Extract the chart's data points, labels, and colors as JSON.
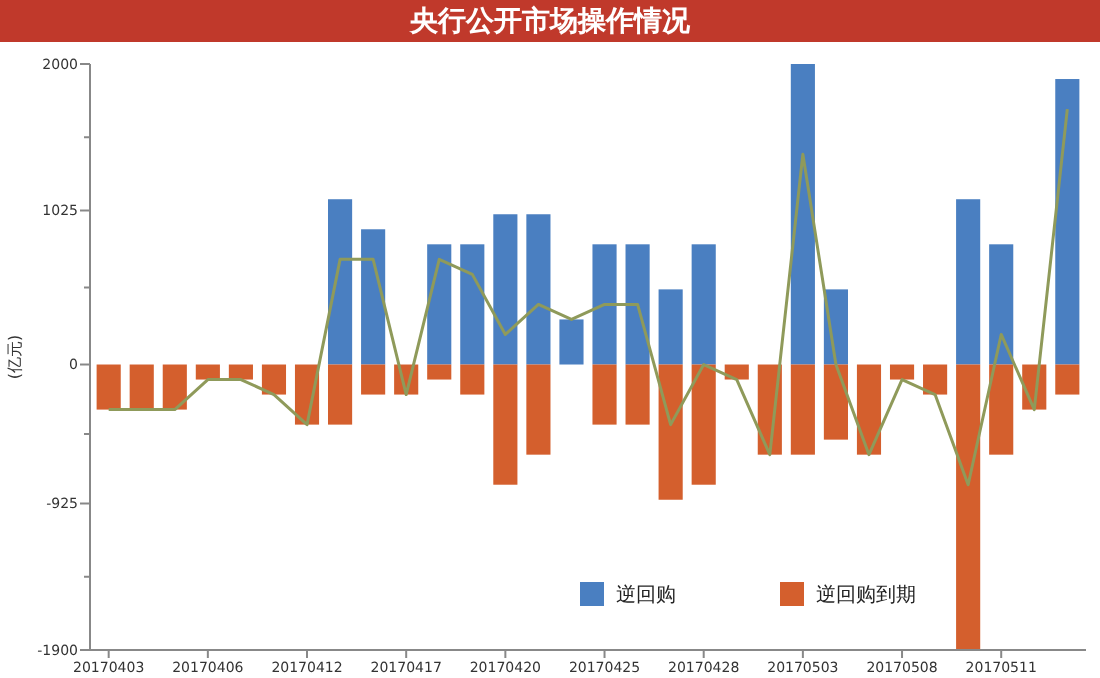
{
  "chart_data": {
    "type": "bar",
    "title": "央行公开市场操作情况",
    "ylabel": "(亿元)",
    "categories": [
      "20170403",
      null,
      null,
      "20170406",
      null,
      null,
      "20170412",
      null,
      null,
      "20170417",
      null,
      null,
      "20170420",
      null,
      null,
      "20170425",
      null,
      null,
      "20170428",
      null,
      null,
      "20170503",
      null,
      null,
      "20170508",
      null,
      null,
      "20170511",
      null,
      null
    ],
    "series": [
      {
        "name": "逆回购",
        "color": "#4a7fc1",
        "values": [
          0,
          0,
          0,
          0,
          0,
          0,
          0,
          1100,
          900,
          0,
          800,
          800,
          1000,
          1000,
          300,
          800,
          800,
          500,
          800,
          0,
          0,
          2000,
          500,
          0,
          0,
          0,
          1100,
          800,
          0,
          1900
        ]
      },
      {
        "name": "逆回购到期",
        "color": "#d45f2d",
        "values": [
          -300,
          -300,
          -300,
          -100,
          -100,
          -200,
          -400,
          -400,
          -200,
          -200,
          -100,
          -200,
          -800,
          -600,
          0,
          -400,
          -400,
          -900,
          -800,
          -100,
          -600,
          -600,
          -500,
          -600,
          -100,
          -200,
          -1900,
          -600,
          -300,
          -200
        ]
      },
      {
        "type": "line",
        "color": "#8f9a5a",
        "values": [
          -300,
          -300,
          -300,
          -100,
          -100,
          -200,
          -400,
          700,
          700,
          -200,
          700,
          600,
          200,
          400,
          300,
          400,
          400,
          -400,
          0,
          -100,
          -600,
          1400,
          0,
          -600,
          -100,
          -200,
          -800,
          200,
          -300,
          1700
        ]
      }
    ],
    "ylim": [
      -1900,
      2000
    ],
    "yticks": [
      -1900,
      {
        "value": -1412.5,
        "label": null
      },
      -925,
      {
        "value": -462.5,
        "label": null
      },
      0,
      {
        "value": 512.5,
        "label": null
      },
      1025,
      {
        "value": 1512.5,
        "label": null
      },
      2000
    ],
    "grid": false,
    "stacked": true,
    "legend": "bottom right"
  }
}
